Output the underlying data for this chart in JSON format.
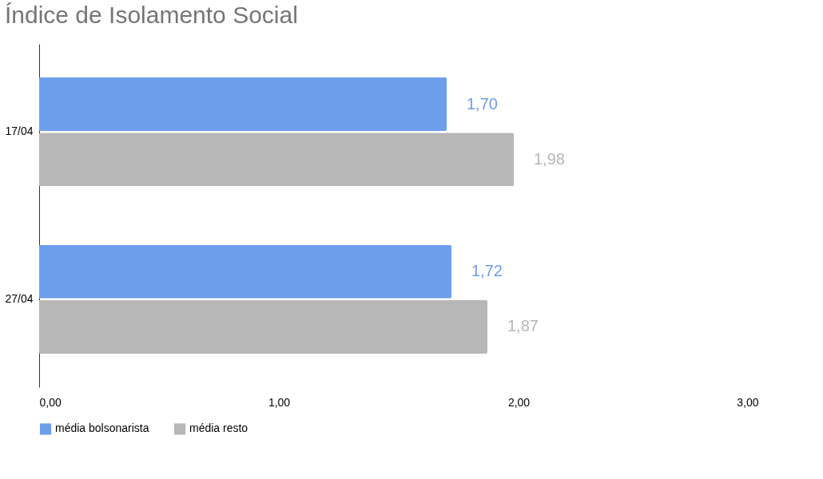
{
  "chart_data": {
    "type": "bar",
    "orientation": "horizontal",
    "title": "Índice de Isolamento Social",
    "categories": [
      "17/04",
      "27/04"
    ],
    "series": [
      {
        "name": "média bolsonarista",
        "color": "#6d9eeb",
        "values": [
          1.7,
          1.72
        ],
        "value_labels": [
          "1,70",
          "1,72"
        ]
      },
      {
        "name": "média resto",
        "color": "#b7b7b7",
        "values": [
          1.98,
          1.87
        ],
        "value_labels": [
          "1,98",
          "1,87"
        ]
      }
    ],
    "xlim": [
      0,
      3
    ],
    "xticks": [
      {
        "value": 0,
        "label": "0,00"
      },
      {
        "value": 1,
        "label": "1,00"
      },
      {
        "value": 2,
        "label": "2,00"
      },
      {
        "value": 3,
        "label": "3,00"
      }
    ],
    "grid": false,
    "legend": "bottom"
  }
}
